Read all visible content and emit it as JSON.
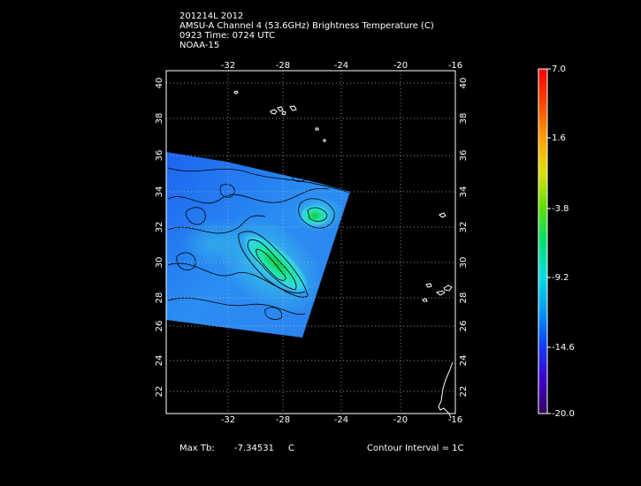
{
  "header": {
    "line1": "201214L 2012",
    "line2": "AMSU-A Channel 4 (53.6GHz) Brightness Temperature (C)",
    "line3": "0923 Time: 0724 UTC",
    "line4": "NOAA-15"
  },
  "map": {
    "lon_ticks": [
      "-32",
      "-28",
      "-24",
      "-20",
      "-16"
    ],
    "lat_ticks": [
      "40",
      "38",
      "36",
      "34",
      "32",
      "30",
      "28",
      "26",
      "24",
      "22"
    ],
    "grid": "dotted",
    "swath_colors": [
      "#1e6cf0",
      "#2b9bf2",
      "#33c8e8",
      "#1ee8a0",
      "#12c83a"
    ]
  },
  "colorbar": {
    "labels": [
      "7.0",
      "1.6",
      "-3.8",
      "-9.2",
      "-14.6",
      "-20.0"
    ],
    "min": -20.0,
    "max": 7.0
  },
  "footer": {
    "max_tb_label": "Max Tb:",
    "max_tb_value": "-7.34531",
    "max_tb_unit": "C",
    "contour": "Contour Interval = 1C"
  }
}
